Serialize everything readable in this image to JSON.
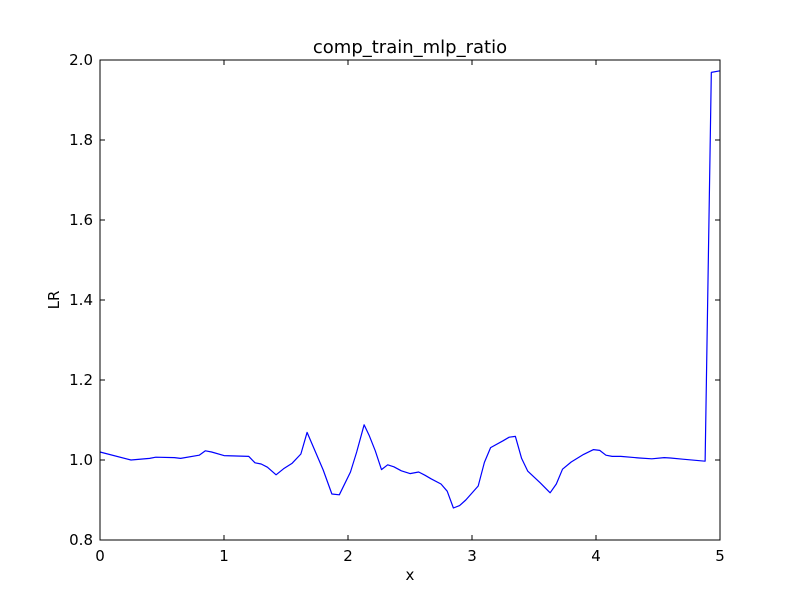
{
  "chart_data": {
    "type": "line",
    "title": "comp_train_mlp_ratio",
    "xlabel": "x",
    "ylabel": "LR",
    "xlim": [
      0,
      5
    ],
    "ylim": [
      0.8,
      2.0
    ],
    "xticks": [
      0,
      1,
      2,
      3,
      4,
      5
    ],
    "yticks": [
      0.8,
      1.0,
      1.2,
      1.4,
      1.6,
      1.8,
      2.0
    ],
    "xtick_labels": [
      "0",
      "1",
      "2",
      "3",
      "4",
      "5"
    ],
    "ytick_labels": [
      "0.8",
      "1.0",
      "1.2",
      "1.4",
      "1.6",
      "1.8",
      "2.0"
    ],
    "grid": false,
    "series": [
      {
        "color": "#0000ff",
        "x": [
          0,
          0.25,
          0.4,
          0.45,
          0.6,
          0.65,
          0.8,
          0.85,
          0.9,
          1.0,
          1.2,
          1.25,
          1.3,
          1.35,
          1.42,
          1.48,
          1.55,
          1.62,
          1.67,
          1.8,
          1.87,
          1.93,
          2.02,
          2.07,
          2.13,
          2.17,
          2.22,
          2.27,
          2.32,
          2.37,
          2.43,
          2.5,
          2.57,
          2.62,
          2.67,
          2.75,
          2.8,
          2.85,
          2.9,
          2.95,
          3.05,
          3.1,
          3.15,
          3.25,
          3.3,
          3.35,
          3.4,
          3.45,
          3.55,
          3.63,
          3.68,
          3.73,
          3.8,
          3.9,
          3.98,
          4.03,
          4.08,
          4.13,
          4.2,
          4.35,
          4.45,
          4.55,
          4.6,
          4.7,
          4.88,
          4.93,
          5.0
        ],
        "y": [
          1.02,
          1.0,
          1.004,
          1.007,
          1.006,
          1.004,
          1.012,
          1.023,
          1.02,
          1.011,
          1.009,
          0.993,
          0.99,
          0.982,
          0.963,
          0.978,
          0.992,
          1.015,
          1.069,
          0.975,
          0.915,
          0.913,
          0.97,
          1.02,
          1.088,
          1.062,
          1.023,
          0.976,
          0.988,
          0.983,
          0.973,
          0.966,
          0.97,
          0.962,
          0.953,
          0.94,
          0.922,
          0.88,
          0.886,
          0.9,
          0.935,
          0.994,
          1.031,
          1.048,
          1.057,
          1.059,
          1.004,
          0.972,
          0.943,
          0.918,
          0.94,
          0.977,
          0.995,
          1.014,
          1.026,
          1.024,
          1.012,
          1.009,
          1.009,
          1.005,
          1.003,
          1.006,
          1.005,
          1.002,
          0.997,
          1.969,
          1.973
        ]
      }
    ]
  }
}
